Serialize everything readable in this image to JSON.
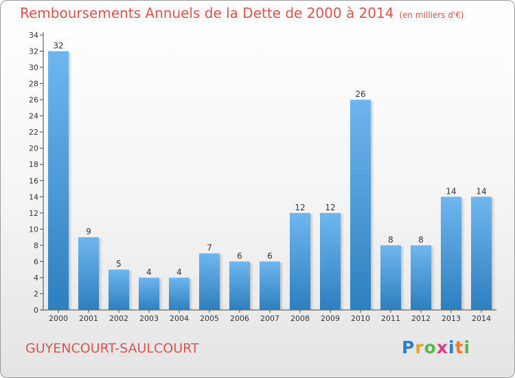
{
  "title": "Remboursements Annuels de la Dette de 2000 à 2014",
  "subtitle": "(en milliers d'€)",
  "commune": "GUYENCOURT-SAULCOURT",
  "logo": {
    "text": "Proxiti",
    "letter_colors": [
      "#2a7dc9",
      "#e8a12a",
      "#59b847",
      "#e23a87",
      "#2a7dc9",
      "#f07a2a",
      "#59b847"
    ]
  },
  "colors": {
    "title": "#d9534f",
    "bar_top": "#6fb6ee",
    "bar_bottom": "#2d7fbf",
    "axis": "#444444",
    "grid": "#c8c8c8"
  },
  "chart_data": {
    "type": "bar",
    "title": "Remboursements Annuels de la Dette de 2000 à 2014",
    "subtitle": "(en milliers d'€)",
    "categories": [
      "2000",
      "2001",
      "2002",
      "2003",
      "2004",
      "2005",
      "2006",
      "2007",
      "2008",
      "2009",
      "2010",
      "2011",
      "2012",
      "2013",
      "2014"
    ],
    "values": [
      32,
      9,
      5,
      4,
      4,
      7,
      6,
      6,
      12,
      12,
      26,
      8,
      8,
      14,
      14
    ],
    "ylim": [
      0,
      34
    ],
    "yticks": [
      0,
      2,
      4,
      6,
      8,
      10,
      12,
      14,
      16,
      18,
      20,
      22,
      24,
      26,
      28,
      30,
      32,
      34
    ],
    "data_labels": true,
    "grid": false,
    "legend": "none"
  }
}
